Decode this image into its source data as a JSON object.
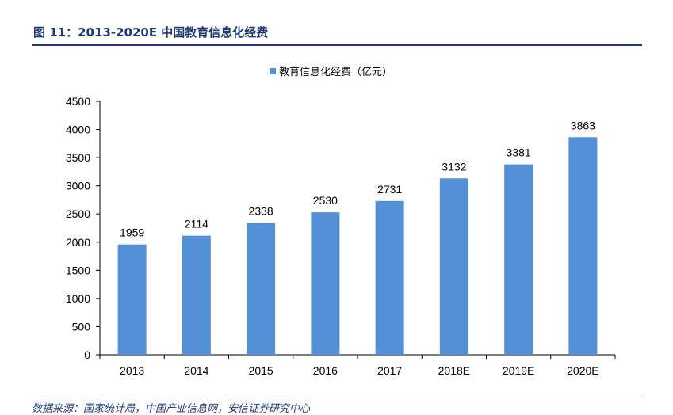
{
  "figure_title": "图 11：2013-2020E 中国教育信息化经费",
  "source_note": "数据来源：国家统计局，中国产业信息网，安信证券研究中心",
  "colors": {
    "bar": "#5390d6",
    "accent": "#1f3a78"
  },
  "chart_data": {
    "type": "bar",
    "title": "",
    "xlabel": "",
    "ylabel": "",
    "categories": [
      "2013",
      "2014",
      "2015",
      "2016",
      "2017",
      "2018E",
      "2019E",
      "2020E"
    ],
    "series": [
      {
        "name": "教育信息化经费（亿元）",
        "values": [
          1959,
          2114,
          2338,
          2530,
          2731,
          3132,
          3381,
          3863
        ]
      }
    ],
    "ylim": [
      0,
      4500
    ],
    "yticks": [
      0,
      500,
      1000,
      1500,
      2000,
      2500,
      3000,
      3500,
      4000,
      4500
    ],
    "legend_position": "top-center",
    "grid": false,
    "data_labels": true
  }
}
